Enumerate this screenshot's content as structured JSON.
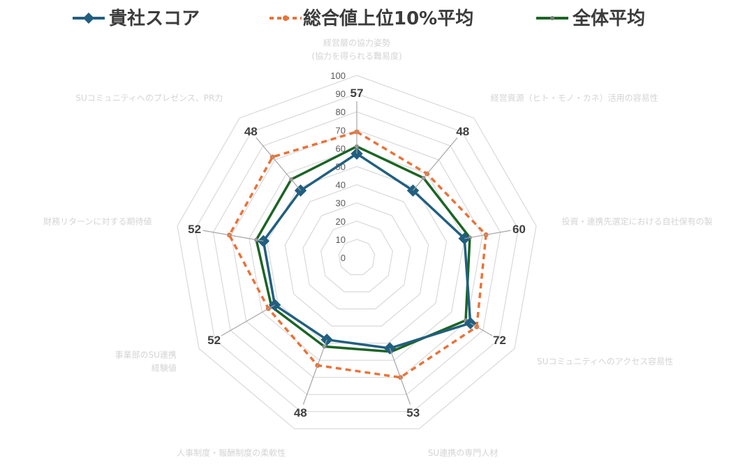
{
  "chart_data": {
    "type": "radar",
    "categories": [
      [
        "経営層の協力姿勢",
        "(協力を得られる難易度)"
      ],
      [
        "経営資源（ヒト・モノ・カネ）活用の容易性"
      ],
      [
        "投資・連携先選定における自社保有の製"
      ],
      [
        "SUコミュニティへのアクセス容易性"
      ],
      [
        "SU連携の専門人材"
      ],
      [
        "人事制度・報酬制度の柔軟性"
      ],
      [
        "事業部のSU連携",
        "経験値"
      ],
      [
        "財務リターンに対する期待値"
      ],
      [
        "SUコミュニティへのプレゼンス、PR力"
      ]
    ],
    "rlim": [
      0,
      100
    ],
    "ticks": [
      "0",
      "10",
      "20",
      "30",
      "40",
      "50",
      "60",
      "70",
      "80",
      "90",
      "100"
    ],
    "grid": true,
    "legend_position": "top",
    "series": [
      {
        "name": "貴社スコア",
        "values": [
          57,
          48,
          60,
          72,
          53,
          48,
          52,
          52,
          48
        ],
        "color": "#215f80",
        "style": "solid",
        "marker": "diamond"
      },
      {
        "name": "総合値上位10%平均",
        "values": [
          69,
          60,
          72,
          76,
          70,
          63,
          56,
          71,
          72
        ],
        "color": "#e8733a",
        "style": "dashed",
        "marker": "circle"
      },
      {
        "name": "全体平均",
        "values": [
          61,
          57,
          63,
          69,
          55,
          52,
          54,
          56,
          56
        ],
        "color": "#1b6424",
        "style": "solid",
        "marker": "circle-small"
      }
    ],
    "data_labels": [
      "57",
      "48",
      "60",
      "72",
      "53",
      "48",
      "52",
      "52",
      "48"
    ]
  }
}
